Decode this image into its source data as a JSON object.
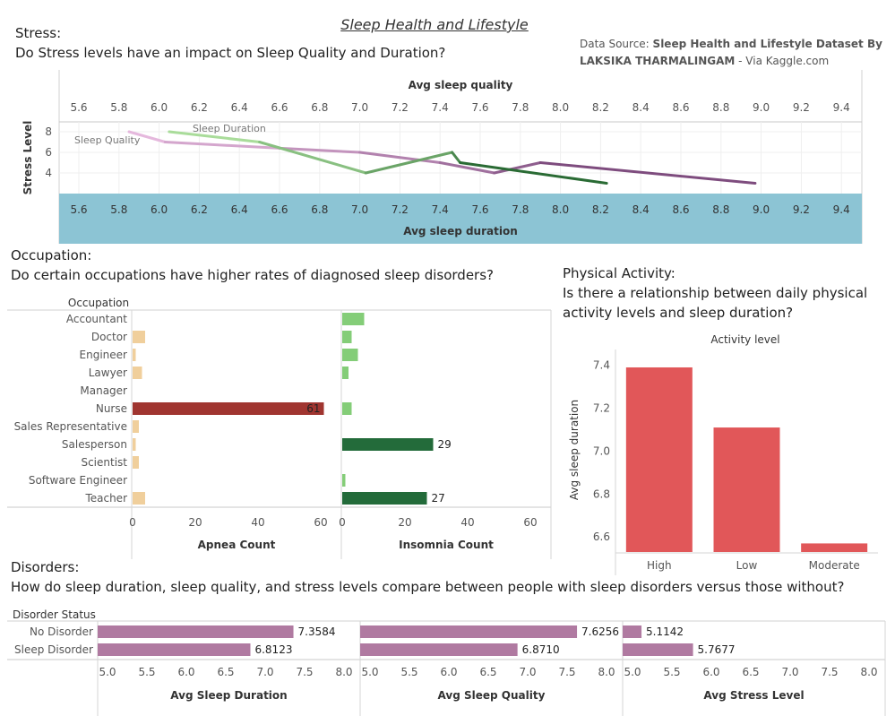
{
  "dashboard": {
    "title": "Sleep Health and Lifestyle",
    "source_prefix": "Data Source: ",
    "source_name": "Sleep Health and Lifestyle Dataset By LAKSIKA THARMALINGAM",
    "source_suffix": " - Via Kaggle.com"
  },
  "stress": {
    "heading": "Stress:",
    "question": "Do Stress levels have an impact on Sleep Quality and Duration?"
  },
  "occupation": {
    "heading": "Occupation:",
    "question": "Do certain occupations have higher rates of diagnosed sleep disorders?"
  },
  "activity": {
    "heading": "Physical Activity:",
    "question_line1": "Is there a relationship between daily physical",
    "question_line2": "activity levels and sleep duration?"
  },
  "disorders": {
    "heading": "Disorders:",
    "question": "How do sleep duration, sleep quality, and stress levels compare between people with sleep disorders versus those without?"
  },
  "chart_data": [
    {
      "type": "line",
      "top_axis_label": "Avg sleep quality",
      "bottom_axis_label": "Avg sleep duration",
      "ylabel": "Stress Level",
      "x_ticks": [
        "5.6",
        "5.8",
        "6.0",
        "6.2",
        "6.4",
        "6.6",
        "6.8",
        "7.0",
        "7.2",
        "7.4",
        "7.6",
        "7.8",
        "8.0",
        "8.2",
        "8.4",
        "8.6",
        "8.8",
        "9.0",
        "9.2",
        "9.4"
      ],
      "xlim": [
        5.5,
        9.5
      ],
      "y_ticks": [
        "8",
        "6",
        "4"
      ],
      "ylim": [
        1.5,
        9.2
      ],
      "series": [
        {
          "name": "Sleep Quality",
          "axis": "Avg sleep quality",
          "color": "#e5b8dd",
          "color_end": "#7e4c7e",
          "points": [
            [
              5.85,
              8
            ],
            [
              6.03,
              7
            ],
            [
              6.6,
              6.4
            ],
            [
              7.0,
              6
            ],
            [
              7.4,
              5
            ],
            [
              7.67,
              4
            ],
            [
              7.9,
              5
            ],
            [
              8.97,
              3
            ]
          ]
        },
        {
          "name": "Sleep Duration",
          "axis": "Avg sleep duration",
          "color": "#a9dc9a",
          "color_end": "#2a6b34",
          "points": [
            [
              6.05,
              8
            ],
            [
              6.5,
              7
            ],
            [
              7.03,
              4
            ],
            [
              7.46,
              6
            ],
            [
              7.5,
              5
            ],
            [
              8.23,
              3
            ]
          ]
        }
      ]
    },
    {
      "type": "bar",
      "orientation": "horizontal",
      "header": "Occupation",
      "categories": [
        "Accountant",
        "Doctor",
        "Engineer",
        "Lawyer",
        "Manager",
        "Nurse",
        "Sales Representative",
        "Salesperson",
        "Scientist",
        "Software Engineer",
        "Teacher"
      ],
      "x_ticks": [
        "0",
        "20",
        "40",
        "60"
      ],
      "xlim": [
        0,
        65
      ],
      "series": [
        {
          "name": "Apnea Count",
          "values": [
            0,
            4,
            1,
            3,
            0,
            61,
            2,
            1,
            2,
            0,
            4
          ],
          "labels": [
            "",
            "",
            "",
            "",
            "",
            "61",
            "",
            "",
            "",
            "",
            ""
          ]
        },
        {
          "name": "Insomnia Count",
          "values": [
            7,
            3,
            5,
            2,
            0,
            3,
            0,
            29,
            0,
            1,
            27
          ],
          "labels": [
            "",
            "",
            "",
            "",
            "",
            "",
            "",
            "29",
            "",
            "",
            "27"
          ]
        }
      ]
    },
    {
      "type": "bar",
      "title": "Activity level",
      "categories": [
        "High",
        "Low",
        "Moderate"
      ],
      "values": [
        7.39,
        7.11,
        6.57
      ],
      "ylabel": "Avg sleep duration",
      "y_ticks": [
        "7.4",
        "7.2",
        "7.0",
        "6.8",
        "6.6"
      ],
      "ylim": [
        6.53,
        7.44
      ],
      "color": "#e15759"
    },
    {
      "type": "bar",
      "orientation": "horizontal",
      "header": "Disorder Status",
      "categories": [
        "No Disorder",
        "Sleep Disorder"
      ],
      "x_ticks": [
        "5.0",
        "5.5",
        "6.0",
        "6.5",
        "7.0",
        "7.5",
        "8.0"
      ],
      "xlim": [
        4.9,
        8.0
      ],
      "color": "#b07aa1",
      "series": [
        {
          "name": "Avg Sleep Duration",
          "values": [
            7.3584,
            6.8123
          ],
          "labels": [
            "7.3584",
            "6.8123"
          ]
        },
        {
          "name": "Avg Sleep Quality",
          "values": [
            7.6256,
            6.871
          ],
          "labels": [
            "7.6256",
            "6.8710"
          ]
        },
        {
          "name": "Avg Stress Level",
          "values": [
            5.1142,
            5.7677
          ],
          "labels": [
            "5.1142",
            "5.7677"
          ]
        }
      ]
    }
  ]
}
